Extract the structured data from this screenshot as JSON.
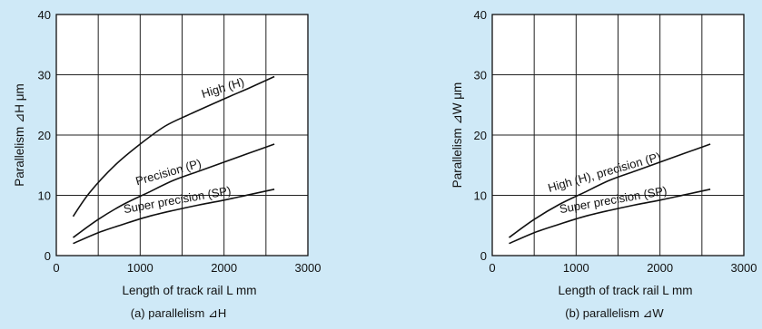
{
  "chart_data": [
    {
      "type": "line",
      "caption": "(a)  parallelism ⊿H",
      "xlabel": "Length of track rail L mm",
      "ylabel": "Parallelism ⊿H μm",
      "xlim": [
        0,
        3000
      ],
      "ylim": [
        0,
        40
      ],
      "xticks": [
        "0",
        "1000",
        "2000",
        "3000"
      ],
      "yticks": [
        "0",
        "10",
        "20",
        "30",
        "40"
      ],
      "grid": true,
      "series": [
        {
          "name": "High (H)",
          "x": [
            200,
            400,
            700,
            1000,
            1300,
            1600,
            2000,
            2300,
            2600
          ],
          "y": [
            6.5,
            10.5,
            15.0,
            18.5,
            21.5,
            23.5,
            26.0,
            27.8,
            29.7
          ]
        },
        {
          "name": "Precision (P)",
          "x": [
            200,
            500,
            800,
            1100,
            1400,
            1700,
            2000,
            2300,
            2600
          ],
          "y": [
            3.0,
            6.0,
            8.5,
            10.5,
            12.5,
            14.0,
            15.5,
            17.0,
            18.5
          ]
        },
        {
          "name": "Super precision (SP)",
          "x": [
            200,
            500,
            800,
            1100,
            1400,
            1700,
            2000,
            2300,
            2600
          ],
          "y": [
            2.0,
            3.8,
            5.2,
            6.5,
            7.5,
            8.4,
            9.2,
            10.1,
            11.0
          ]
        }
      ]
    },
    {
      "type": "line",
      "caption": "(b)  parallelism ⊿W",
      "xlabel": "Length of track rail L mm",
      "ylabel": "Parallelism ⊿W μm",
      "xlim": [
        0,
        3000
      ],
      "ylim": [
        0,
        40
      ],
      "xticks": [
        "0",
        "1000",
        "2000",
        "3000"
      ],
      "yticks": [
        "0",
        "10",
        "20",
        "30",
        "40"
      ],
      "grid": true,
      "series": [
        {
          "name": "High (H), precision (P)",
          "x": [
            200,
            500,
            800,
            1100,
            1400,
            1700,
            2000,
            2300,
            2600
          ],
          "y": [
            3.0,
            6.0,
            8.5,
            10.5,
            12.5,
            14.0,
            15.5,
            17.0,
            18.5
          ]
        },
        {
          "name": "Super precision (SP)",
          "x": [
            200,
            500,
            800,
            1100,
            1400,
            1700,
            2000,
            2300,
            2600
          ],
          "y": [
            2.0,
            3.8,
            5.2,
            6.5,
            7.5,
            8.4,
            9.2,
            10.1,
            11.0
          ]
        }
      ]
    }
  ]
}
